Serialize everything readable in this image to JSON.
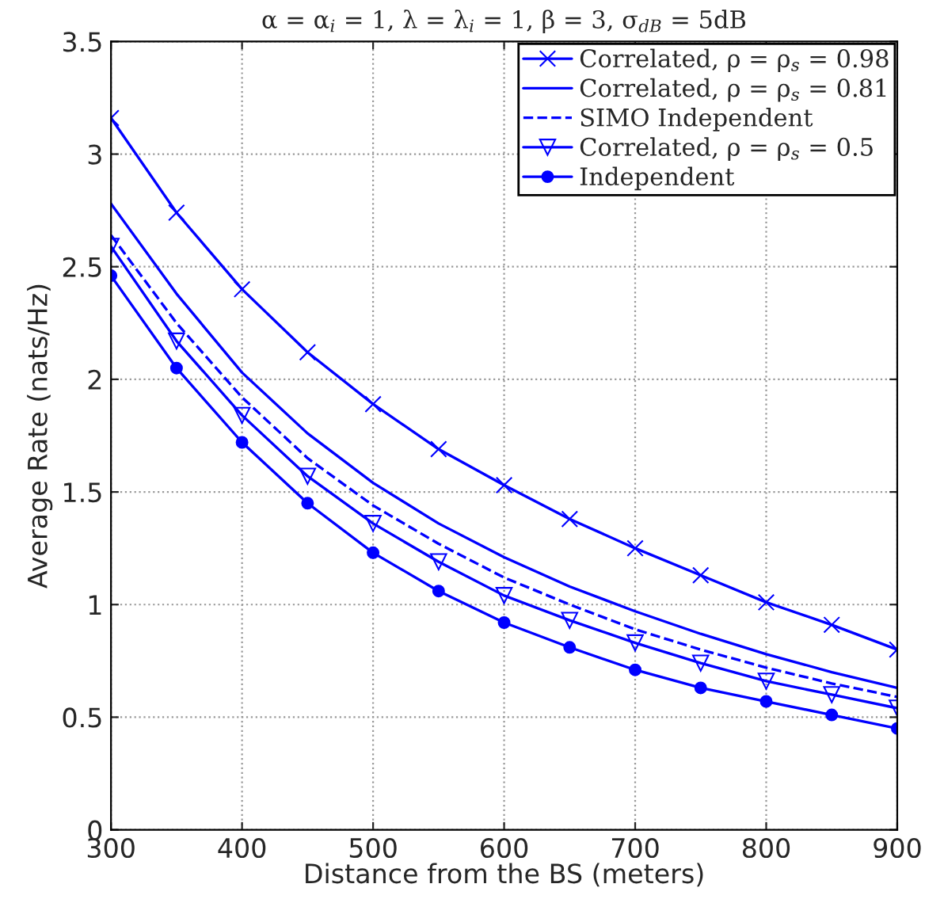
{
  "chart_data": {
    "type": "line",
    "title": "α = α$_{i}$ = 1, λ = λ$_{i}$ = 1, β = 3, σ$_{dB}$ = 5dB",
    "xlabel": "Distance from the BS (meters)",
    "ylabel": "Average Rate (nats/Hz)",
    "x": [
      300,
      350,
      400,
      450,
      500,
      550,
      600,
      650,
      700,
      750,
      800,
      850,
      900
    ],
    "series": [
      {
        "name": "Correlated, ρ = ρ$_{s}$ = 0.98",
        "color": "#0000ff",
        "marker": "cross",
        "line_style": "solid",
        "values": [
          3.16,
          2.74,
          2.4,
          2.12,
          1.89,
          1.69,
          1.53,
          1.38,
          1.25,
          1.13,
          1.01,
          0.91,
          0.8
        ]
      },
      {
        "name": "Correlated, ρ = ρ$_{s}$ = 0.81",
        "color": "#0000ff",
        "marker": "none",
        "line_style": "solid",
        "values": [
          2.78,
          2.38,
          2.03,
          1.76,
          1.54,
          1.36,
          1.21,
          1.08,
          0.97,
          0.87,
          0.78,
          0.7,
          0.63
        ]
      },
      {
        "name": "SIMO Independent",
        "color": "#0000ff",
        "marker": "none",
        "line_style": "dashed",
        "values": [
          2.64,
          2.25,
          1.92,
          1.65,
          1.44,
          1.27,
          1.12,
          1.0,
          0.89,
          0.8,
          0.72,
          0.65,
          0.59
        ]
      },
      {
        "name": "Correlated, ρ = ρ$_{s}$ = 0.5",
        "color": "#0000ff",
        "marker": "triangle",
        "line_style": "solid",
        "values": [
          2.59,
          2.17,
          1.84,
          1.57,
          1.36,
          1.19,
          1.04,
          0.93,
          0.83,
          0.74,
          0.66,
          0.6,
          0.54
        ]
      },
      {
        "name": "Independent",
        "color": "#0000ff",
        "marker": "circle",
        "line_style": "solid",
        "values": [
          2.46,
          2.05,
          1.72,
          1.45,
          1.23,
          1.06,
          0.92,
          0.81,
          0.71,
          0.63,
          0.57,
          0.51,
          0.45
        ]
      }
    ],
    "xlim": [
      300,
      900
    ],
    "xticks": [
      300,
      400,
      500,
      600,
      700,
      800,
      900
    ],
    "ylim": [
      0,
      3.5
    ],
    "yticks": [
      0,
      0.5,
      1,
      1.5,
      2,
      2.5,
      3,
      3.5
    ],
    "grid": true,
    "legend": "top right"
  }
}
